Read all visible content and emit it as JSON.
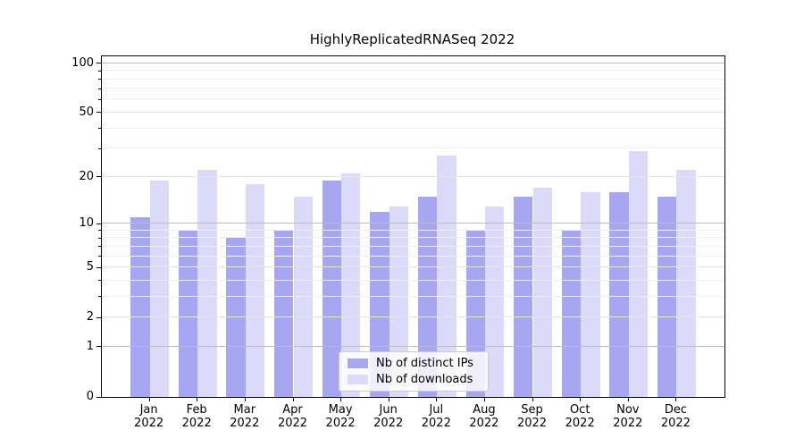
{
  "title": "HighlyReplicatedRNASeq 2022",
  "chart_data": {
    "type": "bar",
    "title": "HighlyReplicatedRNASeq 2022",
    "categories": [
      "Jan 2022",
      "Feb 2022",
      "Mar 2022",
      "Apr 2022",
      "May 2022",
      "Jun 2022",
      "Jul 2022",
      "Aug 2022",
      "Sep 2022",
      "Oct 2022",
      "Nov 2022",
      "Dec 2022"
    ],
    "series": [
      {
        "name": "Nb of distinct IPs",
        "key": "distinct-ips",
        "color": "#a6a6f1",
        "values": [
          11,
          9,
          8,
          9,
          19,
          12,
          15,
          9,
          15,
          9,
          16,
          15
        ]
      },
      {
        "name": "Nb of downloads",
        "key": "downloads",
        "color": "#dbdbf9",
        "values": [
          19,
          22,
          18,
          15,
          21,
          13,
          27,
          13,
          17,
          16,
          29,
          22
        ]
      }
    ],
    "xlabel": "",
    "ylabel": "",
    "yscale": "log1p",
    "ylim": [
      0,
      110
    ],
    "yticks": [
      0,
      1,
      2,
      5,
      10,
      20,
      50,
      100
    ],
    "yticks_minor": [
      3,
      4,
      6,
      7,
      8,
      9,
      30,
      40,
      60,
      70,
      80,
      90
    ],
    "grid": "both",
    "legend_position": "lower center"
  }
}
